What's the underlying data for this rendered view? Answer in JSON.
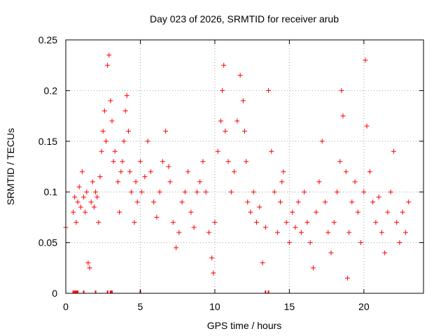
{
  "chart_data": {
    "type": "scatter",
    "title": "Day 023 of 2026, SRMTID for receiver arub",
    "xlabel": "GPS time / hours",
    "ylabel": "SRMTID / TECUs",
    "xlim": [
      0,
      24
    ],
    "ylim": [
      0,
      0.25
    ],
    "xticks": [
      0,
      5,
      10,
      15,
      20
    ],
    "xtick_labels": [
      "0",
      "5",
      "10",
      "15",
      "20"
    ],
    "yticks": [
      0,
      0.05,
      0.1,
      0.15,
      0.2,
      0.25
    ],
    "ytick_labels": [
      "0",
      "0.05",
      "0.1",
      "0.15",
      "0.2",
      "0.25"
    ],
    "grid": true,
    "marker": "+",
    "colors": {
      "points": "#ff0000",
      "grid": "#a0a0a0",
      "axes": "#000000"
    },
    "series": [
      {
        "name": "SRMTID",
        "points": [
          [
            0.0,
            0.065
          ],
          [
            0.5,
            0.08
          ],
          [
            0.6,
            0.095
          ],
          [
            0.7,
            0.07
          ],
          [
            0.8,
            0.09
          ],
          [
            0.9,
            0.105
          ],
          [
            1.0,
            0.085
          ],
          [
            1.1,
            0.12
          ],
          [
            1.2,
            0.095
          ],
          [
            1.3,
            0.08
          ],
          [
            1.4,
            0.1
          ],
          [
            1.5,
            0.03
          ],
          [
            1.6,
            0.025
          ],
          [
            1.7,
            0.09
          ],
          [
            1.8,
            0.11
          ],
          [
            1.9,
            0.085
          ],
          [
            2.0,
            0.1
          ],
          [
            2.1,
            0.095
          ],
          [
            2.2,
            0.07
          ],
          [
            2.3,
            0.115
          ],
          [
            2.4,
            0.14
          ],
          [
            2.5,
            0.16
          ],
          [
            2.6,
            0.18
          ],
          [
            2.7,
            0.15
          ],
          [
            2.8,
            0.225
          ],
          [
            2.9,
            0.235
          ],
          [
            3.0,
            0.19
          ],
          [
            3.1,
            0.17
          ],
          [
            3.2,
            0.13
          ],
          [
            3.3,
            0.14
          ],
          [
            3.5,
            0.11
          ],
          [
            3.6,
            0.08
          ],
          [
            3.7,
            0.12
          ],
          [
            3.8,
            0.13
          ],
          [
            3.9,
            0.15
          ],
          [
            4.0,
            0.18
          ],
          [
            4.1,
            0.195
          ],
          [
            4.2,
            0.16
          ],
          [
            4.3,
            0.12
          ],
          [
            4.4,
            0.1
          ],
          [
            4.6,
            0.07
          ],
          [
            4.7,
            0.11
          ],
          [
            4.8,
            0.09
          ],
          [
            5.0,
            0.13
          ],
          [
            5.1,
            0.1
          ],
          [
            5.3,
            0.115
          ],
          [
            5.5,
            0.15
          ],
          [
            5.7,
            0.12
          ],
          [
            5.9,
            0.09
          ],
          [
            6.1,
            0.075
          ],
          [
            6.3,
            0.1
          ],
          [
            6.5,
            0.13
          ],
          [
            6.7,
            0.16
          ],
          [
            6.9,
            0.125
          ],
          [
            7.0,
            0.11
          ],
          [
            7.2,
            0.07
          ],
          [
            7.4,
            0.045
          ],
          [
            7.6,
            0.06
          ],
          [
            7.8,
            0.09
          ],
          [
            8.0,
            0.1
          ],
          [
            8.2,
            0.12
          ],
          [
            8.4,
            0.08
          ],
          [
            8.6,
            0.065
          ],
          [
            8.8,
            0.1
          ],
          [
            9.0,
            0.11
          ],
          [
            9.2,
            0.13
          ],
          [
            9.4,
            0.1
          ],
          [
            9.6,
            0.06
          ],
          [
            9.8,
            0.035
          ],
          [
            9.9,
            0.02
          ],
          [
            10.0,
            0.07
          ],
          [
            10.2,
            0.14
          ],
          [
            10.4,
            0.17
          ],
          [
            10.5,
            0.2
          ],
          [
            10.6,
            0.225
          ],
          [
            10.7,
            0.16
          ],
          [
            10.9,
            0.13
          ],
          [
            11.1,
            0.1
          ],
          [
            11.3,
            0.12
          ],
          [
            11.5,
            0.17
          ],
          [
            11.7,
            0.215
          ],
          [
            11.9,
            0.19
          ],
          [
            12.0,
            0.16
          ],
          [
            12.1,
            0.13
          ],
          [
            12.2,
            0.09
          ],
          [
            12.4,
            0.08
          ],
          [
            12.6,
            0.1
          ],
          [
            12.8,
            0.07
          ],
          [
            13.0,
            0.085
          ],
          [
            13.2,
            0.03
          ],
          [
            13.4,
            0.065
          ],
          [
            13.6,
            0.2
          ],
          [
            13.8,
            0.14
          ],
          [
            14.0,
            0.1
          ],
          [
            14.2,
            0.06
          ],
          [
            14.4,
            0.09
          ],
          [
            14.5,
            0.11
          ],
          [
            14.6,
            0.12
          ],
          [
            14.8,
            0.07
          ],
          [
            15.0,
            0.05
          ],
          [
            15.2,
            0.08
          ],
          [
            15.4,
            0.065
          ],
          [
            15.6,
            0.09
          ],
          [
            15.8,
            0.06
          ],
          [
            16.0,
            0.1
          ],
          [
            16.2,
            0.07
          ],
          [
            16.4,
            0.05
          ],
          [
            16.6,
            0.025
          ],
          [
            16.8,
            0.08
          ],
          [
            17.0,
            0.11
          ],
          [
            17.2,
            0.15
          ],
          [
            17.4,
            0.09
          ],
          [
            17.6,
            0.06
          ],
          [
            17.8,
            0.04
          ],
          [
            18.0,
            0.07
          ],
          [
            18.2,
            0.1
          ],
          [
            18.4,
            0.13
          ],
          [
            18.5,
            0.2
          ],
          [
            18.6,
            0.175
          ],
          [
            18.8,
            0.12
          ],
          [
            18.9,
            0.015
          ],
          [
            19.0,
            0.06
          ],
          [
            19.2,
            0.09
          ],
          [
            19.4,
            0.11
          ],
          [
            19.6,
            0.08
          ],
          [
            19.8,
            0.05
          ],
          [
            20.0,
            0.1
          ],
          [
            20.1,
            0.23
          ],
          [
            20.2,
            0.165
          ],
          [
            20.4,
            0.12
          ],
          [
            20.6,
            0.09
          ],
          [
            20.8,
            0.07
          ],
          [
            21.0,
            0.095
          ],
          [
            21.2,
            0.06
          ],
          [
            21.4,
            0.04
          ],
          [
            21.6,
            0.08
          ],
          [
            21.8,
            0.1
          ],
          [
            22.0,
            0.14
          ],
          [
            22.2,
            0.07
          ],
          [
            22.4,
            0.05
          ],
          [
            22.6,
            0.08
          ],
          [
            22.8,
            0.06
          ],
          [
            23.0,
            0.09
          ]
        ]
      }
    ],
    "zero_marks_x": [
      0.5,
      0.6,
      0.7,
      0.8,
      1.2,
      2.0,
      2.8,
      3.0,
      3.1,
      5.0,
      13.4,
      13.6
    ]
  }
}
